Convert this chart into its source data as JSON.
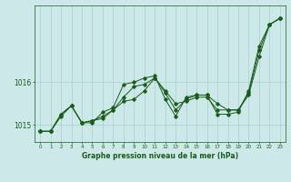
{
  "title": "Graphe pression niveau de la mer (hPa)",
  "background_color": "#cce8e8",
  "grid_color": "#aacfcf",
  "line_color": "#1a5c1a",
  "series": [
    [
      1014.85,
      1014.85,
      1015.2,
      1015.45,
      1015.05,
      1015.1,
      1015.15,
      1015.35,
      1015.55,
      1015.6,
      1015.8,
      1016.1,
      1015.8,
      1015.5,
      1015.55,
      1015.65,
      1015.65,
      1015.35,
      1015.35,
      1015.35,
      1015.75,
      1016.75,
      1017.35,
      1017.5
    ],
    [
      1014.85,
      1014.85,
      1015.25,
      1015.45,
      1015.05,
      1015.1,
      1015.2,
      1015.35,
      1015.65,
      1015.9,
      1015.95,
      1016.1,
      1015.75,
      1015.35,
      1015.6,
      1015.7,
      1015.7,
      1015.5,
      1015.35,
      1015.35,
      1015.7,
      1016.6,
      1017.35,
      1017.5
    ],
    [
      1014.85,
      1014.85,
      1015.25,
      1015.45,
      1015.05,
      1015.05,
      1015.3,
      1015.4,
      1015.95,
      1016.0,
      1016.1,
      1016.15,
      1015.6,
      1015.2,
      1015.65,
      1015.7,
      1015.7,
      1015.25,
      1015.25,
      1015.3,
      1015.8,
      1016.85,
      1017.35,
      1017.5
    ]
  ],
  "ylim": [
    1014.6,
    1017.8
  ],
  "yticks": [
    1015,
    1016
  ],
  "xlim": [
    -0.5,
    23.5
  ],
  "x_labels": [
    "0",
    "1",
    "2",
    "3",
    "4",
    "5",
    "6",
    "7",
    "8",
    "9",
    "10",
    "11",
    "12",
    "13",
    "14",
    "15",
    "16",
    "17",
    "18",
    "19",
    "20",
    "21",
    "22",
    "23"
  ]
}
